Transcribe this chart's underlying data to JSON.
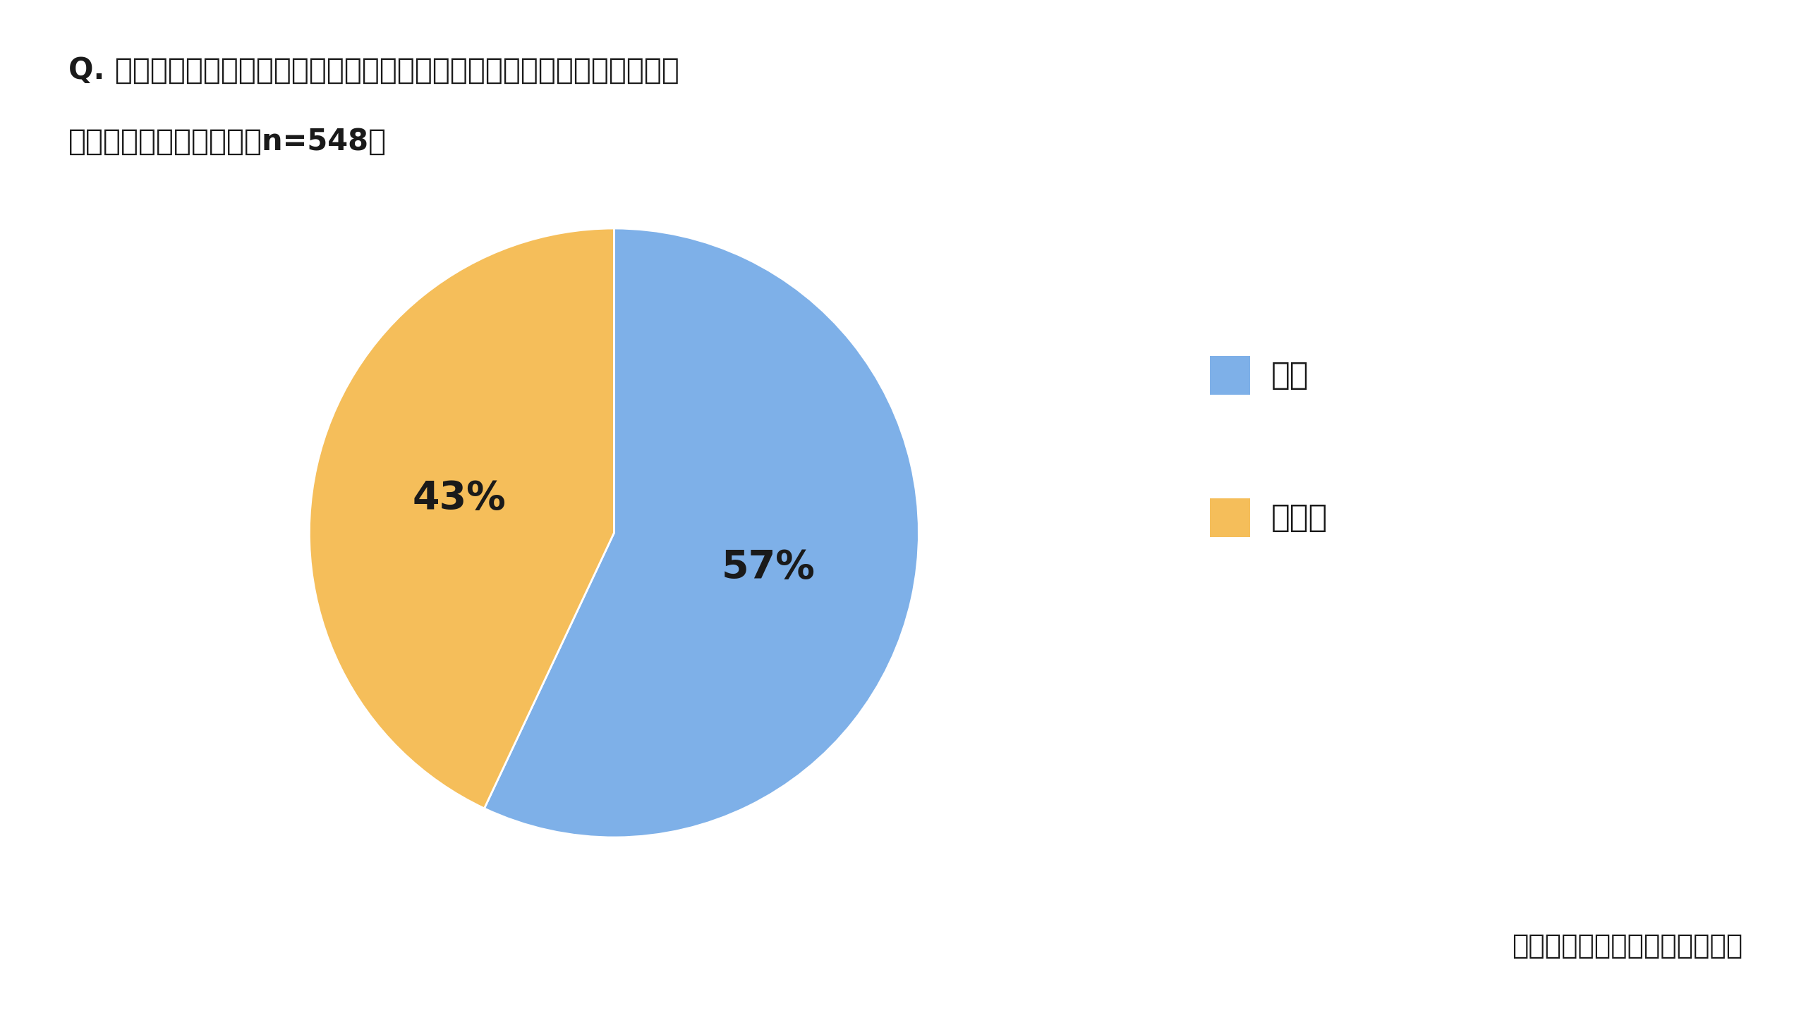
{
  "title_line1": "Q. 夏の不在時は、高温多湿によりエアコンにカビが生えやすくなることを",
  "title_line2": "　　知っていますか？（n=548）",
  "labels": [
    "はい",
    "いいえ"
  ],
  "values": [
    57,
    43
  ],
  "colors": [
    "#7EB0E8",
    "#F5BE5A"
  ],
  "label_texts": [
    "57%",
    "43%"
  ],
  "legend_labels": [
    "はい",
    "いいえ"
  ],
  "footer_text": "パナソニック「エオリア」調べ",
  "background_color": "#ffffff",
  "text_color": "#1a1a1a",
  "title_fontsize": 30,
  "legend_fontsize": 32,
  "pct_fontsize": 40,
  "footer_fontsize": 28
}
